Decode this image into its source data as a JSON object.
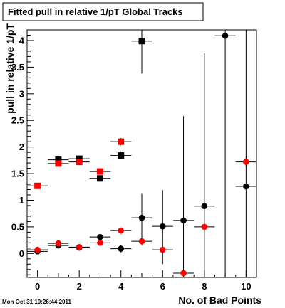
{
  "title": "Fitted pull in relative 1/pT  Global Tracks",
  "timestamp": "Mon Oct 31 10:26:44 2011",
  "chart_data": {
    "type": "scatter",
    "title": "Fitted pull in relative 1/pT  Global Tracks",
    "xlabel": "No. of Bad Points",
    "ylabel": "pull in relative 1/pT",
    "xlim": [
      -0.5,
      10.5
    ],
    "ylim": [
      -0.45,
      4.2
    ],
    "x_ticks": [
      "0",
      "2",
      "4",
      "6",
      "8",
      "10"
    ],
    "y_ticks": [
      "0",
      "0.5",
      "1",
      "1.5",
      "2",
      "2.5",
      "3",
      "3.5",
      "4"
    ],
    "grid": false,
    "series": [
      {
        "marker": "square",
        "color": "#000000",
        "points": [
          {
            "x": 1,
            "y": 1.76,
            "ylo": 1.72,
            "yhi": 1.8
          },
          {
            "x": 2,
            "y": 1.78,
            "ylo": 1.73,
            "yhi": 1.83
          },
          {
            "x": 3,
            "y": 1.41,
            "ylo": 1.35,
            "yhi": 1.47
          },
          {
            "x": 4,
            "y": 1.84,
            "ylo": 1.77,
            "yhi": 1.91
          },
          {
            "x": 5,
            "y": 3.99,
            "ylo": 3.38,
            "yhi": 4.2
          }
        ]
      },
      {
        "marker": "square",
        "color": "#ff0000",
        "points": [
          {
            "x": 0,
            "y": 1.27,
            "ylo": 1.24,
            "yhi": 1.3
          },
          {
            "x": 1,
            "y": 1.69,
            "ylo": 1.66,
            "yhi": 1.72
          },
          {
            "x": 2,
            "y": 1.72,
            "ylo": 1.68,
            "yhi": 1.76
          },
          {
            "x": 3,
            "y": 1.54,
            "ylo": 1.49,
            "yhi": 1.59
          },
          {
            "x": 4,
            "y": 2.1,
            "ylo": 2.03,
            "yhi": 2.17
          }
        ]
      },
      {
        "marker": "circle",
        "color": "#000000",
        "points": [
          {
            "x": 0,
            "y": 0.04,
            "ylo": 0.01,
            "yhi": 0.07
          },
          {
            "x": 1,
            "y": 0.15,
            "ylo": 0.11,
            "yhi": 0.19
          },
          {
            "x": 2,
            "y": 0.11,
            "ylo": 0.07,
            "yhi": 0.15
          },
          {
            "x": 3,
            "y": 0.31,
            "ylo": 0.25,
            "yhi": 0.37
          },
          {
            "x": 4,
            "y": 0.09,
            "ylo": 0.02,
            "yhi": 0.16
          },
          {
            "x": 5,
            "y": 0.67,
            "ylo": 0.2,
            "yhi": 1.12
          },
          {
            "x": 6,
            "y": 0.51,
            "ylo": -0.2,
            "yhi": 1.19
          },
          {
            "x": 7,
            "y": 0.62,
            "ylo": -0.45,
            "yhi": 2.58
          },
          {
            "x": 8,
            "y": 0.89,
            "ylo": -0.45,
            "yhi": 3.76
          },
          {
            "x": 9,
            "y": 4.09,
            "ylo": -0.45,
            "yhi": 4.2
          },
          {
            "x": 10,
            "y": 1.26,
            "ylo": -0.45,
            "yhi": 4.2
          }
        ]
      },
      {
        "marker": "circle",
        "color": "#ff0000",
        "points": [
          {
            "x": 0,
            "y": 0.07,
            "ylo": 0.05,
            "yhi": 0.09
          },
          {
            "x": 1,
            "y": 0.19,
            "ylo": 0.16,
            "yhi": 0.22
          },
          {
            "x": 2,
            "y": 0.12,
            "ylo": 0.09,
            "yhi": 0.15
          },
          {
            "x": 3,
            "y": 0.2,
            "ylo": 0.15,
            "yhi": 0.25
          },
          {
            "x": 4,
            "y": 0.43,
            "ylo": 0.37,
            "yhi": 0.49
          },
          {
            "x": 5,
            "y": 0.23,
            "ylo": 0.15,
            "yhi": 0.31
          },
          {
            "x": 6,
            "y": 0.07,
            "ylo": 0.0,
            "yhi": 0.14
          },
          {
            "x": 7,
            "y": -0.37,
            "ylo": -0.45,
            "yhi": -0.3
          },
          {
            "x": 8,
            "y": 0.5,
            "ylo": 0.44,
            "yhi": 0.56
          },
          {
            "x": 10,
            "y": 1.72,
            "ylo": 1.62,
            "yhi": 1.82
          }
        ]
      }
    ]
  }
}
